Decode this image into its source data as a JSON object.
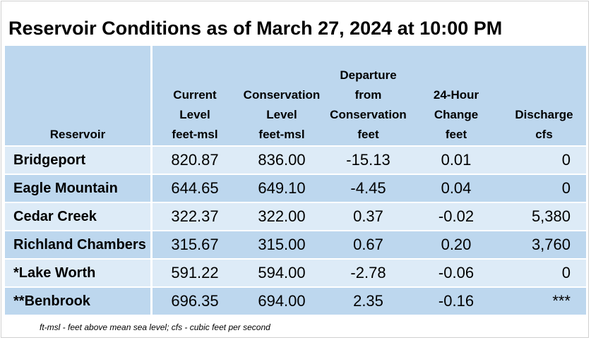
{
  "title": "Reservoir Conditions as of March 27, 2024 at 10:00 PM",
  "columns": [
    {
      "lines": [
        "Reservoir"
      ]
    },
    {
      "lines": [
        "Current",
        "Level",
        "feet-msl"
      ]
    },
    {
      "lines": [
        "Conservation",
        "Level",
        "feet-msl"
      ]
    },
    {
      "lines": [
        "Departure",
        "from",
        "Conservation",
        "feet"
      ]
    },
    {
      "lines": [
        "24-Hour",
        "Change",
        "feet"
      ]
    },
    {
      "lines": [
        "Discharge",
        "cfs"
      ]
    }
  ],
  "rows": [
    {
      "name": "Bridgeport",
      "current": "820.87",
      "conservation": "836.00",
      "departure": "-15.13",
      "change": "0.01",
      "discharge": "0"
    },
    {
      "name": "Eagle Mountain",
      "current": "644.65",
      "conservation": "649.10",
      "departure": "-4.45",
      "change": "0.04",
      "discharge": "0"
    },
    {
      "name": "Cedar Creek",
      "current": "322.37",
      "conservation": "322.00",
      "departure": "0.37",
      "change": "-0.02",
      "discharge": "5,380"
    },
    {
      "name": "Richland Chambers",
      "current": "315.67",
      "conservation": "315.00",
      "departure": "0.67",
      "change": "0.20",
      "discharge": "3,760"
    },
    {
      "name": "*Lake Worth",
      "current": "591.22",
      "conservation": "594.00",
      "departure": "-2.78",
      "change": "-0.06",
      "discharge": "0"
    },
    {
      "name": "**Benbrook",
      "current": "696.35",
      "conservation": "694.00",
      "departure": "2.35",
      "change": "-0.16",
      "discharge": "***"
    }
  ],
  "footnote": "ft-msl - feet above mean sea level; cfs - cubic feet per second",
  "colors": {
    "header_bg": "#bdd7ee",
    "row_light": "#ddebf7",
    "row_dark": "#bdd7ee"
  }
}
